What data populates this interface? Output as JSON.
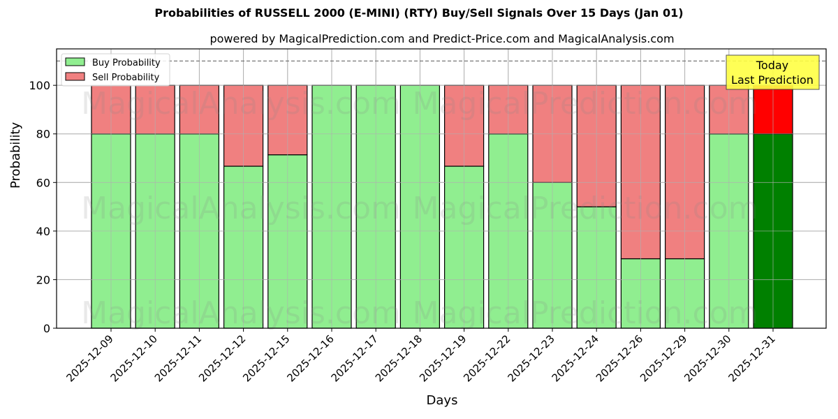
{
  "title": "Probabilities of RUSSELL 2000 (E-MINI) (RTY) Buy/Sell Signals Over 15 Days (Jan 01)",
  "subtitle": "powered by MagicalPrediction.com and Predict-Price.com and MagicalAnalysis.com",
  "watermarks": [
    "MagicalAnalysis.com",
    "MagicalPrediction.com"
  ],
  "annotation": {
    "line1": "Today",
    "line2": "Last Prediction"
  },
  "colors": {
    "buy": "#90ee90",
    "sell": "#f08080",
    "today_buy": "#008000",
    "today_sell": "#ff0000",
    "annotation_bg": "#ffff44"
  },
  "chart_data": {
    "type": "bar",
    "stacked": true,
    "title": "Probabilities of RUSSELL 2000 (E-MINI) (RTY) Buy/Sell Signals Over 15 Days (Jan 01)",
    "subtitle": "powered by MagicalPrediction.com and Predict-Price.com and MagicalAnalysis.com",
    "xlabel": "Days",
    "ylabel": "Probability",
    "ylim": [
      0,
      115
    ],
    "yticks": [
      0,
      20,
      40,
      60,
      80,
      100
    ],
    "reference_line": 110,
    "grid": true,
    "legend_position": "upper left",
    "categories": [
      "2025-12-09",
      "2025-12-10",
      "2025-12-11",
      "2025-12-12",
      "2025-12-15",
      "2025-12-16",
      "2025-12-17",
      "2025-12-18",
      "2025-12-19",
      "2025-12-22",
      "2025-12-23",
      "2025-12-24",
      "2025-12-26",
      "2025-12-29",
      "2025-12-30",
      "2025-12-31"
    ],
    "series": [
      {
        "name": "Buy Probability",
        "values": [
          80,
          80,
          80,
          66.7,
          71.4,
          100,
          100,
          100,
          66.7,
          80,
          60,
          50,
          28.6,
          28.6,
          80,
          80
        ]
      },
      {
        "name": "Sell Probability",
        "values": [
          20,
          20,
          20,
          33.3,
          28.6,
          0,
          0,
          0,
          33.3,
          20,
          40,
          50,
          71.4,
          71.4,
          20,
          20
        ]
      }
    ],
    "annotations": [
      "Today\nLast Prediction"
    ]
  }
}
